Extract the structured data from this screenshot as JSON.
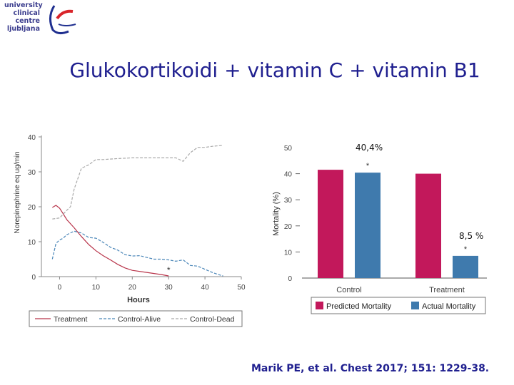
{
  "logo": {
    "lines": [
      "university",
      "clinical",
      "centre",
      "ljubljana"
    ],
    "colors": {
      "text": "#3b3d8e",
      "arc_blue": "#1f2f8f",
      "arc_red": "#d9252a"
    }
  },
  "slide_title": "Glukokortikoidi + vitamin C + vitamin B1",
  "citation": "Marik PE, et al. Chest 2017; 151: 1229-38.",
  "annotations": {
    "control_pct": "40,4%",
    "treatment_pct": "8,5 %"
  },
  "chart_data": [
    {
      "type": "line",
      "xlabel": "Hours",
      "ylabel": "Norepinephrine eq ug/min",
      "xlim": [
        -5,
        50
      ],
      "ylim": [
        0,
        40
      ],
      "xticks": [
        "0",
        "10",
        "20",
        "30",
        "40",
        "50"
      ],
      "yticks": [
        "0",
        "10",
        "20",
        "30",
        "40"
      ],
      "marker": "*",
      "marker_at": [
        30,
        2
      ],
      "series": [
        {
          "name": "Treatment",
          "color": "#b8344a",
          "style": "solid",
          "x": [
            -2,
            -1,
            0,
            1,
            2,
            4,
            6,
            8,
            10,
            12,
            14,
            16,
            18,
            20,
            24,
            28,
            30
          ],
          "y": [
            19.8,
            20.4,
            19.6,
            18,
            16.3,
            14,
            11.5,
            9.2,
            7.4,
            6,
            4.8,
            3.5,
            2.5,
            1.8,
            1.2,
            0.6,
            0.2
          ]
        },
        {
          "name": "Control-Alive",
          "color": "#4a86b8",
          "style": "dashed",
          "x": [
            -2,
            -1,
            0,
            1,
            2,
            4,
            6,
            8,
            10,
            12,
            14,
            16,
            18,
            20,
            22,
            24,
            26,
            28,
            30,
            32,
            34,
            36,
            38,
            40,
            42,
            44,
            45
          ],
          "y": [
            5,
            9.5,
            10.5,
            11,
            12,
            13,
            12.5,
            11.2,
            11,
            9.8,
            8.4,
            7.6,
            6.3,
            5.9,
            6,
            5.5,
            5,
            5,
            4.8,
            4.4,
            4.8,
            3.2,
            3,
            2.1,
            1.2,
            0.5,
            0.2
          ]
        },
        {
          "name": "Control-Dead",
          "color": "#a9a9a9",
          "style": "dashed",
          "x": [
            -2,
            0,
            2,
            3,
            4,
            6,
            8,
            10,
            12,
            16,
            20,
            24,
            28,
            30,
            32,
            34,
            36,
            38,
            40,
            42,
            44,
            45
          ],
          "y": [
            16.5,
            16.8,
            19,
            20,
            25,
            31,
            32,
            33.5,
            33.5,
            33.8,
            34,
            34,
            34,
            34,
            34,
            33,
            35.5,
            37,
            37,
            37.3,
            37.5,
            37.6
          ]
        }
      ]
    },
    {
      "type": "bar",
      "ylabel": "Mortality (%)",
      "ylim": [
        0,
        50
      ],
      "yticks": [
        "0",
        "10",
        "20",
        "30",
        "40",
        "50"
      ],
      "categories": [
        "Control",
        "Treatment"
      ],
      "series": [
        {
          "name": "Predicted Mortality",
          "color": "#c2185b",
          "values": [
            41.5,
            40
          ]
        },
        {
          "name": "Actual Mortality",
          "color": "#3f7aad",
          "values": [
            40.4,
            8.5
          ]
        }
      ],
      "markers": [
        "*",
        "*"
      ]
    }
  ]
}
